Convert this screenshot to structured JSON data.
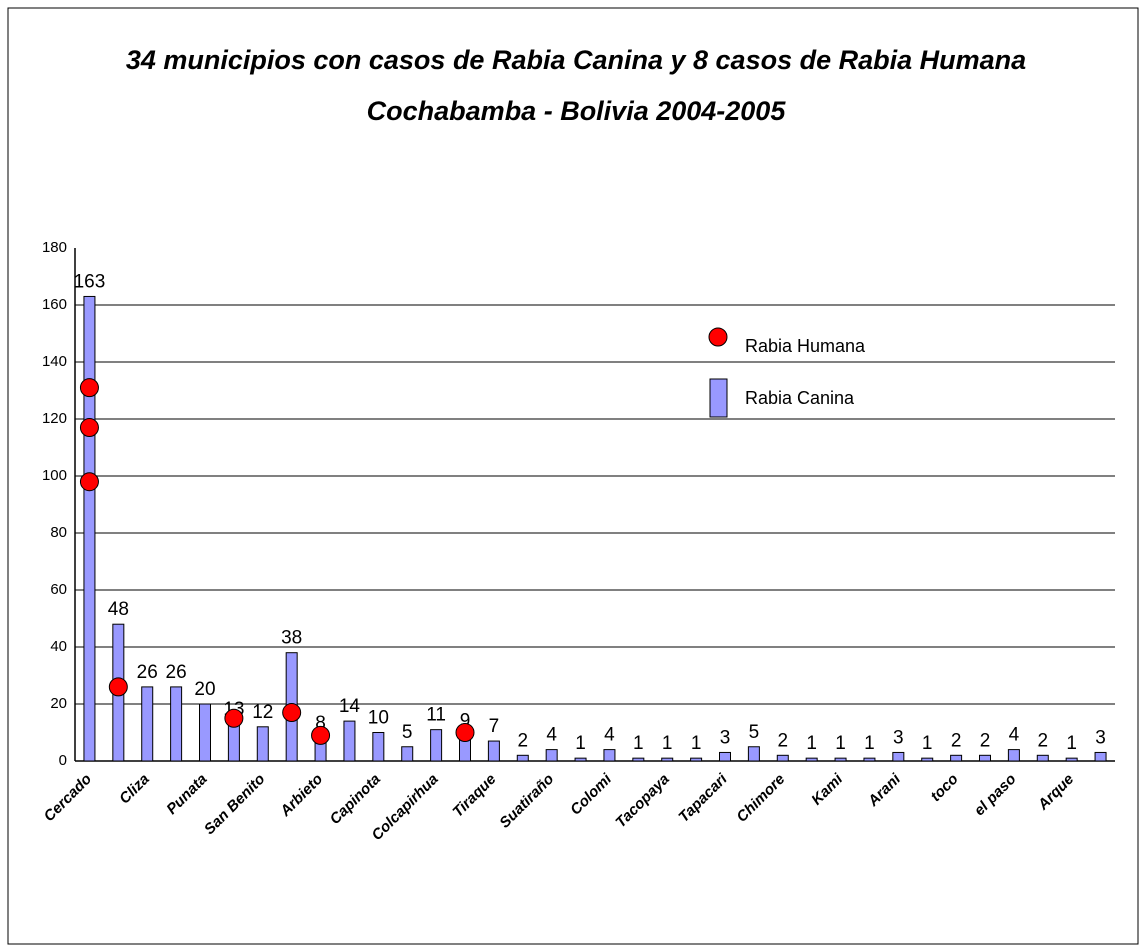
{
  "chart_data": {
    "type": "bar",
    "title": "34 municipios con casos de Rabia Canina y 8 casos de Rabia Humana",
    "subtitle": "Cochabamba - Bolivia 2004-2005",
    "categories": [
      "Cercado",
      null,
      "Cliza",
      null,
      "Punata",
      null,
      "San Benito",
      null,
      "Arbieto",
      null,
      "Capinota",
      null,
      "Colcapirhua",
      null,
      "Tiraque",
      null,
      "Suatiraño",
      null,
      "Colomi",
      null,
      "Tacopaya",
      null,
      "Tapacari",
      null,
      "Chimore",
      null,
      "Kami",
      null,
      "Arani",
      null,
      "toco",
      null,
      "el paso",
      null,
      "Arque",
      null
    ],
    "series": [
      {
        "name": "Rabia Canina",
        "color": "#9999ff",
        "values": [
          163,
          48,
          26,
          26,
          20,
          13,
          12,
          38,
          8,
          14,
          10,
          5,
          11,
          9,
          7,
          2,
          4,
          1,
          4,
          1,
          1,
          1,
          3,
          5,
          2,
          1,
          1,
          1,
          3,
          1,
          2,
          2,
          4,
          2,
          1,
          3
        ]
      },
      {
        "name": "Rabia Humana",
        "color": "#ff0000",
        "type": "scatter",
        "x": [
          0,
          0,
          0,
          1,
          5,
          7,
          8,
          13
        ],
        "values": [
          131,
          117,
          98,
          26,
          15,
          17,
          9,
          10
        ]
      }
    ],
    "ylim": [
      0,
      180
    ],
    "yticks": [
      0,
      20,
      40,
      60,
      80,
      100,
      120,
      140,
      160,
      180
    ],
    "grid": true,
    "legend": "upper right"
  }
}
